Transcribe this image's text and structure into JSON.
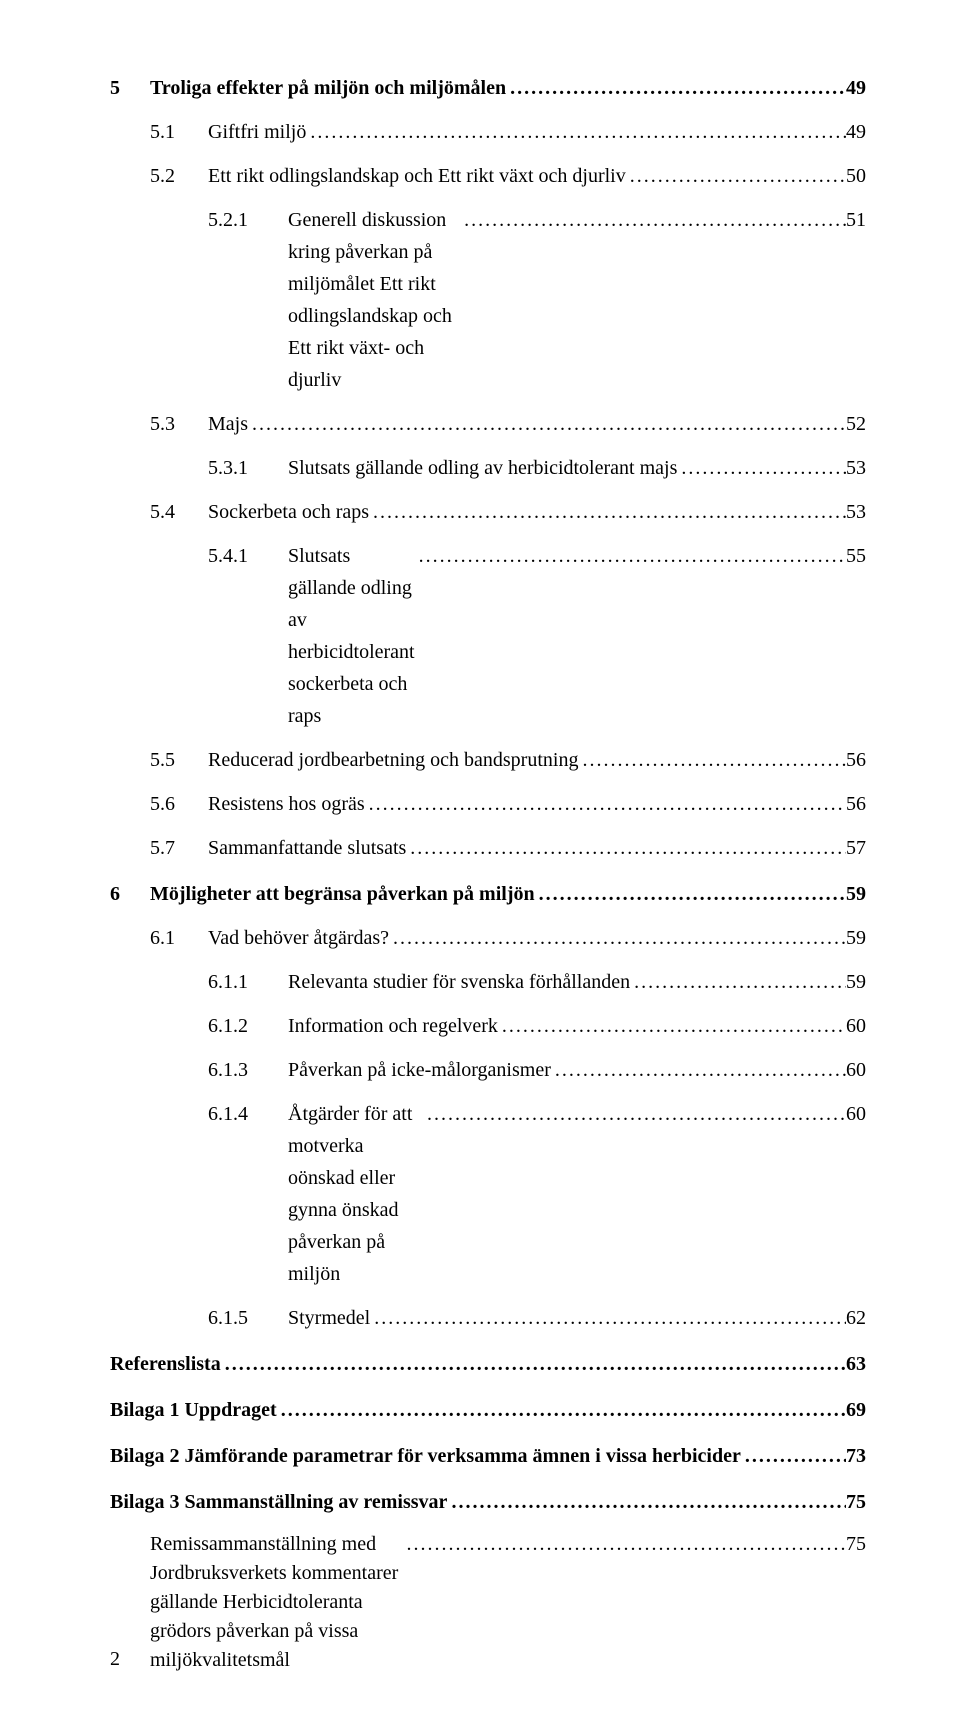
{
  "pageNumber": "2",
  "font": {
    "family": "Times New Roman, serif",
    "body_size_pt": 15,
    "heading_weight": "bold"
  },
  "colors": {
    "background": "#ffffff",
    "text": "#000000"
  },
  "toc": [
    {
      "level": 0,
      "num": "5",
      "label": "Troliga effekter på miljön och miljömålen",
      "page": "49"
    },
    {
      "level": 1,
      "num": "5.1",
      "label": "Giftfri miljö",
      "page": "49"
    },
    {
      "level": 1,
      "num": "5.2",
      "label": "Ett rikt odlingslandskap och Ett rikt växt och djurliv",
      "page": "50"
    },
    {
      "level": 2,
      "num": "5.2.1",
      "label": "Generell diskussion kring påverkan på miljömålet Ett rikt odlingslandskap och Ett rikt växt- och djurliv",
      "page": "51"
    },
    {
      "level": 1,
      "num": "5.3",
      "label": "Majs",
      "page": "52"
    },
    {
      "level": 2,
      "num": "5.3.1",
      "label": "Slutsats gällande odling av herbicidtolerant majs",
      "page": "53"
    },
    {
      "level": 1,
      "num": "5.4",
      "label": "Sockerbeta och raps",
      "page": "53"
    },
    {
      "level": 2,
      "num": "5.4.1",
      "label": "Slutsats gällande odling av herbicidtolerant sockerbeta och raps",
      "page": "55"
    },
    {
      "level": 1,
      "num": "5.5",
      "label": "Reducerad jordbearbetning och bandsprutning",
      "page": "56"
    },
    {
      "level": 1,
      "num": "5.6",
      "label": "Resistens hos ogräs",
      "page": "56"
    },
    {
      "level": 1,
      "num": "5.7",
      "label": "Sammanfattande slutsats",
      "page": "57"
    },
    {
      "level": 0,
      "num": "6",
      "label": "Möjligheter att begränsa påverkan på miljön",
      "page": "59"
    },
    {
      "level": 1,
      "num": "6.1",
      "label": "Vad behöver åtgärdas?",
      "page": "59"
    },
    {
      "level": 2,
      "num": "6.1.1",
      "label": "Relevanta studier för svenska förhållanden",
      "page": "59"
    },
    {
      "level": 2,
      "num": "6.1.2",
      "label": "Information och regelverk",
      "page": "60"
    },
    {
      "level": 2,
      "num": "6.1.3",
      "label": "Påverkan på icke-målorganismer",
      "page": "60"
    },
    {
      "level": 2,
      "num": "6.1.4",
      "label": "Åtgärder för att motverka oönskad eller gynna önskad påverkan på miljön",
      "page": "60"
    },
    {
      "level": 2,
      "num": "6.1.5",
      "label": "Styrmedel",
      "page": "62"
    },
    {
      "level": 0,
      "num": "",
      "label": "Referenslista",
      "page": "63"
    },
    {
      "level": 0,
      "num": "",
      "label": "Bilaga 1 Uppdraget",
      "page": "69"
    },
    {
      "level": 0,
      "num": "",
      "label": "Bilaga 2 Jämförande parametrar för verksamma ämnen i vissa herbicider",
      "page": "73"
    },
    {
      "level": 0,
      "num": "",
      "label": "Bilaga 3 Sammanställning av remissvar",
      "page": "75"
    }
  ],
  "bodyText": {
    "line": "Remissammanställning med Jordbruksverkets kommentarer gällande Herbicidtoleranta grödors påverkan på vissa miljökvalitetsmål",
    "page": "75"
  }
}
